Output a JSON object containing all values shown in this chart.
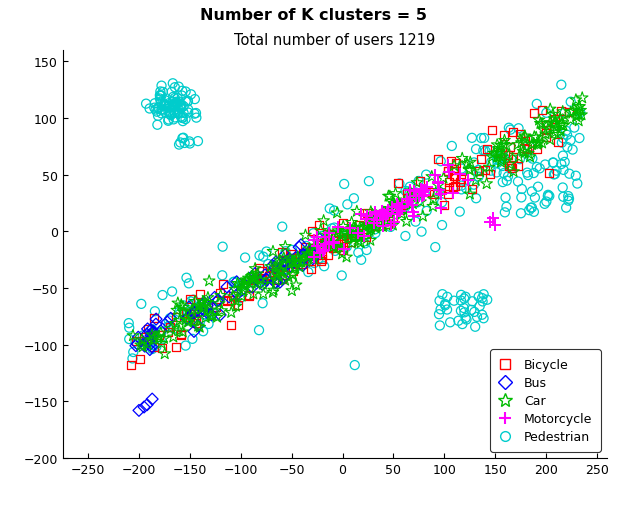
{
  "title1": "Number of K clusters = 5",
  "title2": "Total number of users 1219",
  "xlim": [
    -275,
    260
  ],
  "ylim": [
    -200,
    160
  ],
  "xticks": [
    -250,
    -200,
    -150,
    -100,
    -50,
    0,
    50,
    100,
    150,
    200,
    250
  ],
  "yticks": [
    -200,
    -150,
    -100,
    -50,
    0,
    50,
    100,
    150
  ],
  "bicycle_color": "#ff0000",
  "bus_color": "#0000ff",
  "car_color": "#00bb00",
  "motorcycle_color": "#ff00ff",
  "pedestrian_color": "#00cccc",
  "seed": 42
}
